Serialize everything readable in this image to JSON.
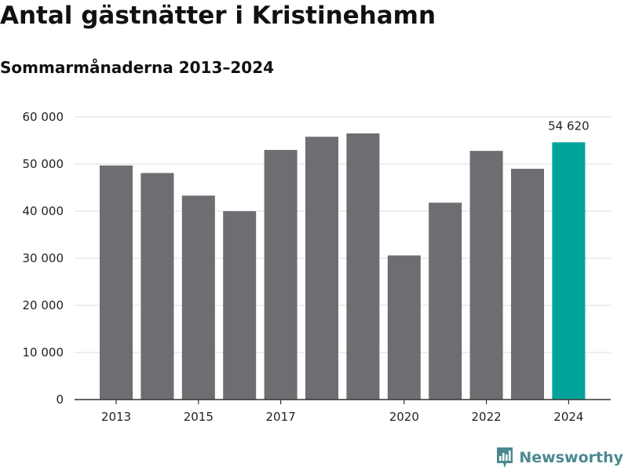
{
  "header": {
    "title": "Antal gästnätter i Kristinehamn",
    "subtitle": "Sommarmånaderna 2013–2024"
  },
  "brand": {
    "name": "Newsworthy",
    "icon": "newsworthy-logo-icon",
    "color": "#4a8a8f"
  },
  "colors": {
    "bar": "#6e6d72",
    "highlight": "#00a39a",
    "grid": "#dddddd",
    "axis": "#333333"
  },
  "chart_data": {
    "type": "bar",
    "title": "Antal gästnätter i Kristinehamn",
    "subtitle": "Sommarmånaderna 2013–2024",
    "xlabel": "",
    "ylabel": "",
    "categories": [
      "2013",
      "2014",
      "2015",
      "2016",
      "2017",
      "2018",
      "2019",
      "2020",
      "2021",
      "2022",
      "2023",
      "2024"
    ],
    "values": [
      49700,
      48100,
      43300,
      40000,
      53000,
      55800,
      56500,
      30600,
      41800,
      52800,
      49000,
      54620
    ],
    "highlight_category": "2024",
    "x_tick_labels": [
      "2013",
      "",
      "2015",
      "",
      "2017",
      "",
      "",
      "2020",
      "",
      "2022",
      "",
      "2024"
    ],
    "y_ticks": [
      0,
      10000,
      20000,
      30000,
      40000,
      50000,
      60000
    ],
    "y_tick_labels": [
      "0",
      "10 000",
      "20 000",
      "30 000",
      "40 000",
      "50 000",
      "60 000"
    ],
    "ylim": [
      0,
      60000
    ],
    "annotations": [
      {
        "category": "2024",
        "text": "54 620"
      }
    ],
    "grid": true,
    "legend": "none"
  }
}
